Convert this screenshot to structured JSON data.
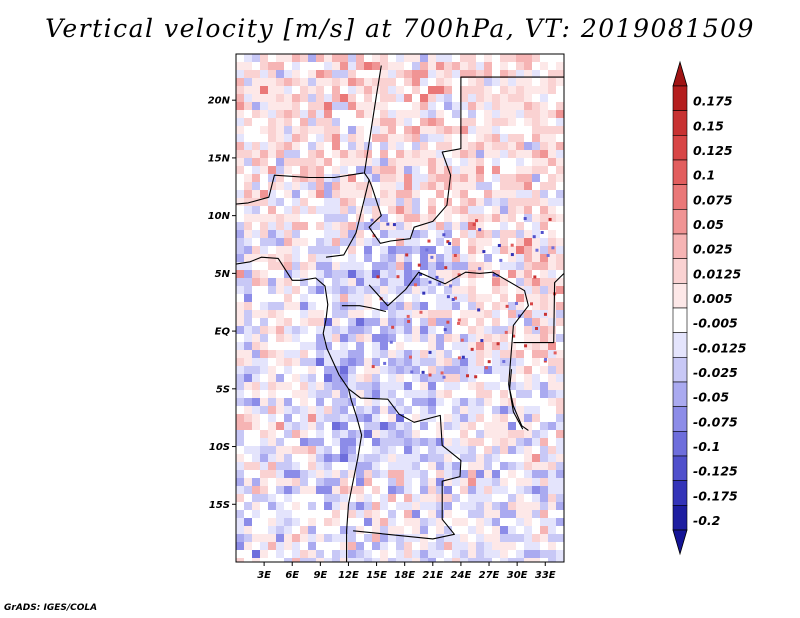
{
  "title": "Vertical velocity [m/s] at 700hPa, VT: 2019081509",
  "footer": "GrADS: IGES/COLA",
  "map": {
    "projection": "latlon",
    "lon_range": [
      0,
      35
    ],
    "lat_range": [
      -20,
      24
    ],
    "lon_ticks": [
      {
        "value": 3,
        "label": "3E"
      },
      {
        "value": 6,
        "label": "6E"
      },
      {
        "value": 9,
        "label": "9E"
      },
      {
        "value": 12,
        "label": "12E"
      },
      {
        "value": 15,
        "label": "15E"
      },
      {
        "value": 18,
        "label": "18E"
      },
      {
        "value": 21,
        "label": "21E"
      },
      {
        "value": 24,
        "label": "24E"
      },
      {
        "value": 27,
        "label": "27E"
      },
      {
        "value": 30,
        "label": "30E"
      },
      {
        "value": 33,
        "label": "33E"
      }
    ],
    "lat_ticks": [
      {
        "value": 20,
        "label": "20N"
      },
      {
        "value": 15,
        "label": "15N"
      },
      {
        "value": 10,
        "label": "10N"
      },
      {
        "value": 5,
        "label": "5N"
      },
      {
        "value": 0,
        "label": "EQ"
      },
      {
        "value": -5,
        "label": "5S"
      },
      {
        "value": -10,
        "label": "10S"
      },
      {
        "value": -15,
        "label": "15S"
      }
    ]
  },
  "colorbar": {
    "units": "m/s",
    "levels": [
      {
        "label": "0.175",
        "color": "#b41e1e"
      },
      {
        "label": "0.15",
        "color": "#c83232"
      },
      {
        "label": "0.125",
        "color": "#d84646"
      },
      {
        "label": "0.1",
        "color": "#e25e5e"
      },
      {
        "label": "0.075",
        "color": "#ea7878"
      },
      {
        "label": "0.05",
        "color": "#f09494"
      },
      {
        "label": "0.025",
        "color": "#f6b4b4"
      },
      {
        "label": "0.0125",
        "color": "#fad2d2"
      },
      {
        "label": "0.005",
        "color": "#fde8e8"
      },
      {
        "label": "-0.005",
        "color": "#ffffff"
      },
      {
        "label": "-0.0125",
        "color": "#e4e4fc"
      },
      {
        "label": "-0.025",
        "color": "#c8c8f6"
      },
      {
        "label": "-0.05",
        "color": "#aaaaf0"
      },
      {
        "label": "-0.075",
        "color": "#8c8ce8"
      },
      {
        "label": "-0.1",
        "color": "#6e6edc"
      },
      {
        "label": "-0.125",
        "color": "#5050cc"
      },
      {
        "label": "-0.175",
        "color": "#3434b8"
      },
      {
        "label": "-0.2",
        "color": "#1e1ea0"
      }
    ],
    "top_color": "#a01414",
    "bottom_color": "#141496"
  }
}
